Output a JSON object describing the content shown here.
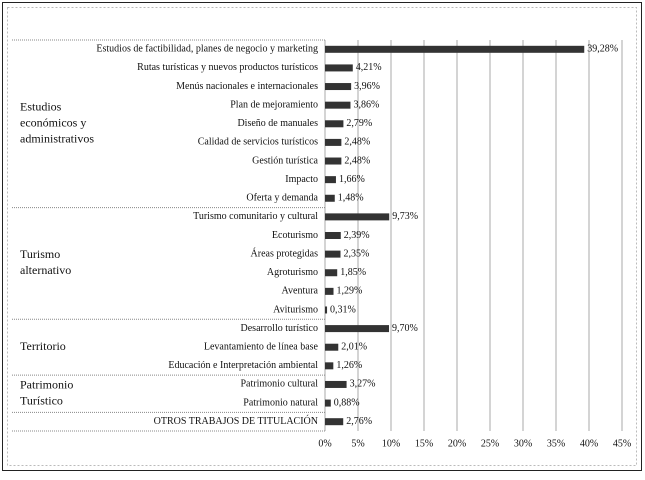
{
  "chart_data": {
    "type": "bar",
    "orientation": "horizontal",
    "color": "#333333",
    "grid": true,
    "xlim": [
      0,
      45
    ],
    "xticks": [
      {
        "value": 0,
        "label": "0%"
      },
      {
        "value": 5,
        "label": "5%"
      },
      {
        "value": 10,
        "label": "10%"
      },
      {
        "value": 15,
        "label": "15%"
      },
      {
        "value": 20,
        "label": "20%"
      },
      {
        "value": 25,
        "label": "25%"
      },
      {
        "value": 30,
        "label": "30%"
      },
      {
        "value": 35,
        "label": "35%"
      },
      {
        "value": 40,
        "label": "40%"
      },
      {
        "value": 45,
        "label": "45%"
      }
    ],
    "groups": [
      {
        "label": [
          "Estudios",
          "económicos y",
          "administrativos"
        ],
        "categories": [
          "Estudios de factibilidad, planes de negocio y marketing",
          "Rutas turísticas y nuevos productos turísticos",
          "Menús nacionales e internacionales",
          "Plan de mejoramiento",
          "Diseño de manuales",
          "Calidad de servicios turísticos",
          "Gestión turística",
          "Impacto",
          "Oferta y demanda"
        ],
        "values": [
          39.28,
          4.21,
          3.96,
          3.86,
          2.79,
          2.48,
          2.48,
          1.66,
          1.48
        ],
        "value_labels": [
          "39,28%",
          "4,21%",
          "3,96%",
          "3,86%",
          "2,79%",
          "2,48%",
          "2,48%",
          "1,66%",
          "1,48%"
        ]
      },
      {
        "label": [
          "Turismo",
          "alternativo"
        ],
        "categories": [
          "Turismo comunitario y cultural",
          "Ecoturismo",
          "Áreas protegidas",
          "Agroturismo",
          "Aventura",
          "Aviturismo"
        ],
        "values": [
          9.73,
          2.39,
          2.35,
          1.85,
          1.29,
          0.31
        ],
        "value_labels": [
          "9,73%",
          "2,39%",
          "2,35%",
          "1,85%",
          "1,29%",
          "0,31%"
        ]
      },
      {
        "label": [
          "Territorio"
        ],
        "categories": [
          "Desarrollo turístico",
          "Levantamiento de línea base",
          "Educación e Interpretación ambiental"
        ],
        "values": [
          9.7,
          2.01,
          1.26
        ],
        "value_labels": [
          "9,70%",
          "2,01%",
          "1,26%"
        ]
      },
      {
        "label": [
          "Patrimonio",
          "Turístico"
        ],
        "categories": [
          "Patrimonio cultural",
          "Patrimonio natural"
        ],
        "values": [
          3.27,
          0.88
        ],
        "value_labels": [
          "3,27%",
          "0,88%"
        ]
      },
      {
        "categories": [
          "OTROS TRABAJOS DE TITULACIÓN"
        ],
        "values": [
          2.76
        ],
        "value_labels": [
          "2,76%"
        ]
      }
    ]
  }
}
